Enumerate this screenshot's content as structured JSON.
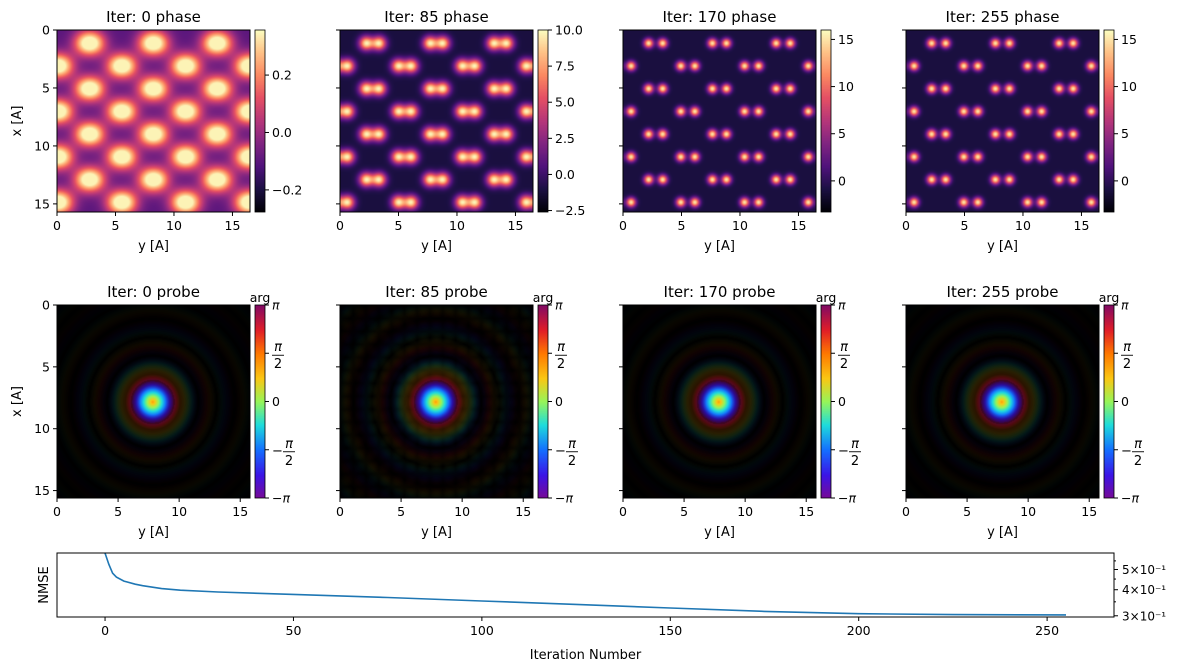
{
  "colors": {
    "line": "#1f77b4",
    "axes": "#000000"
  },
  "chart_data": [
    {
      "type": "heatmap",
      "title": "Iter: 0 phase",
      "xlabel": "y [A]",
      "ylabel": "x [A]",
      "colormap": "magma",
      "xlim": [
        0,
        16.5
      ],
      "ylim": [
        15.7,
        0
      ],
      "xticks": [
        "0",
        "5",
        "10",
        "15"
      ],
      "yticks": [
        "0",
        "5",
        "10",
        "15"
      ],
      "colorbar": {
        "range": [
          -0.277,
          0.357
        ],
        "ticks": [
          -0.2,
          0.0,
          0.2
        ],
        "tick_labels": [
          "−0.2",
          "0.0",
          "0.2"
        ]
      }
    },
    {
      "type": "heatmap",
      "title": "Iter: 85 phase",
      "xlabel": "y [A]",
      "colormap": "magma",
      "xlim": [
        0,
        16.5
      ],
      "ylim": [
        15.7,
        0
      ],
      "xticks": [
        "0",
        "5",
        "10",
        "15"
      ],
      "colorbar": {
        "range": [
          -2.6,
          10.0
        ],
        "ticks": [
          -2.5,
          0.0,
          2.5,
          5.0,
          7.5,
          10.0
        ],
        "tick_labels": [
          "−2.5",
          "0.0",
          "2.5",
          "5.0",
          "7.5",
          "10.0"
        ]
      }
    },
    {
      "type": "heatmap",
      "title": "Iter: 170 phase",
      "xlabel": "y [A]",
      "colormap": "magma",
      "xlim": [
        0,
        16.5
      ],
      "ylim": [
        15.7,
        0
      ],
      "xticks": [
        "0",
        "5",
        "10",
        "15"
      ],
      "colorbar": {
        "range": [
          -3.3,
          16.0
        ],
        "ticks": [
          0,
          5,
          10,
          15
        ],
        "tick_labels": [
          "0",
          "5",
          "10",
          "15"
        ]
      }
    },
    {
      "type": "heatmap",
      "title": "Iter: 255 phase",
      "xlabel": "y [A]",
      "colormap": "magma",
      "xlim": [
        0,
        16.5
      ],
      "ylim": [
        15.7,
        0
      ],
      "xticks": [
        "0",
        "5",
        "10",
        "15"
      ],
      "colorbar": {
        "range": [
          -3.3,
          16.0
        ],
        "ticks": [
          0,
          5,
          10,
          15
        ],
        "tick_labels": [
          "0",
          "5",
          "10",
          "15"
        ]
      }
    },
    {
      "type": "heatmap",
      "title": "Iter: 0 probe",
      "xlabel": "y [A]",
      "ylabel": "x [A]",
      "colormap": "complex (hue = arg)",
      "xlim": [
        0,
        15.8
      ],
      "ylim": [
        15.6,
        0
      ],
      "xticks": [
        "0",
        "5",
        "10",
        "15"
      ],
      "yticks": [
        "0",
        "5",
        "10",
        "15"
      ],
      "colorbar": {
        "label": "arg",
        "range": [
          -3.14159,
          3.14159
        ],
        "ticks": [
          -3.14159,
          -1.5708,
          0,
          1.5708,
          3.14159
        ],
        "tick_labels": [
          "−π",
          "−π/2",
          "0",
          "π/2",
          "π"
        ]
      }
    },
    {
      "type": "heatmap",
      "title": "Iter: 85 probe",
      "xlabel": "y [A]",
      "colormap": "complex (hue = arg)",
      "xlim": [
        0,
        15.8
      ],
      "ylim": [
        15.6,
        0
      ],
      "xticks": [
        "0",
        "5",
        "10",
        "15"
      ],
      "colorbar": {
        "label": "arg",
        "range": [
          -3.14159,
          3.14159
        ],
        "ticks": [
          -3.14159,
          -1.5708,
          0,
          1.5708,
          3.14159
        ],
        "tick_labels": [
          "−π",
          "−π/2",
          "0",
          "π/2",
          "π"
        ]
      }
    },
    {
      "type": "heatmap",
      "title": "Iter: 170 probe",
      "xlabel": "y [A]",
      "colormap": "complex (hue = arg)",
      "xlim": [
        0,
        15.8
      ],
      "ylim": [
        15.6,
        0
      ],
      "xticks": [
        "0",
        "5",
        "10",
        "15"
      ],
      "colorbar": {
        "label": "arg",
        "range": [
          -3.14159,
          3.14159
        ],
        "ticks": [
          -3.14159,
          -1.5708,
          0,
          1.5708,
          3.14159
        ],
        "tick_labels": [
          "−π",
          "−π/2",
          "0",
          "π/2",
          "π"
        ]
      }
    },
    {
      "type": "heatmap",
      "title": "Iter: 255 probe",
      "xlabel": "y [A]",
      "colormap": "complex (hue = arg)",
      "xlim": [
        0,
        15.8
      ],
      "ylim": [
        15.6,
        0
      ],
      "xticks": [
        "0",
        "5",
        "10",
        "15"
      ],
      "colorbar": {
        "label": "arg",
        "range": [
          -3.14159,
          3.14159
        ],
        "ticks": [
          -3.14159,
          -1.5708,
          0,
          1.5708,
          3.14159
        ],
        "tick_labels": [
          "−π",
          "−π/2",
          "0",
          "π/2",
          "π"
        ]
      }
    },
    {
      "type": "line",
      "xlabel": "Iteration Number",
      "ylabel": "NMSE",
      "yscale": "log",
      "xlim": [
        -12.75,
        267.75
      ],
      "ylim": [
        0.296,
        0.6
      ],
      "xticks": [
        0,
        50,
        100,
        150,
        200,
        250
      ],
      "xtick_labels": [
        "0",
        "50",
        "100",
        "150",
        "200",
        "250"
      ],
      "yticks": [
        0.3,
        0.4,
        0.5
      ],
      "ytick_labels": [
        "3×10⁻¹",
        "4×10⁻¹",
        "5×10⁻¹"
      ],
      "ytick_side": "right",
      "x": [
        0,
        1,
        2,
        3,
        5,
        8,
        10,
        15,
        20,
        30,
        50,
        75,
        100,
        125,
        150,
        175,
        200,
        225,
        255
      ],
      "y": [
        0.6,
        0.53,
        0.48,
        0.46,
        0.44,
        0.425,
        0.418,
        0.405,
        0.398,
        0.39,
        0.38,
        0.367,
        0.353,
        0.34,
        0.327,
        0.315,
        0.307,
        0.304,
        0.303
      ]
    }
  ]
}
